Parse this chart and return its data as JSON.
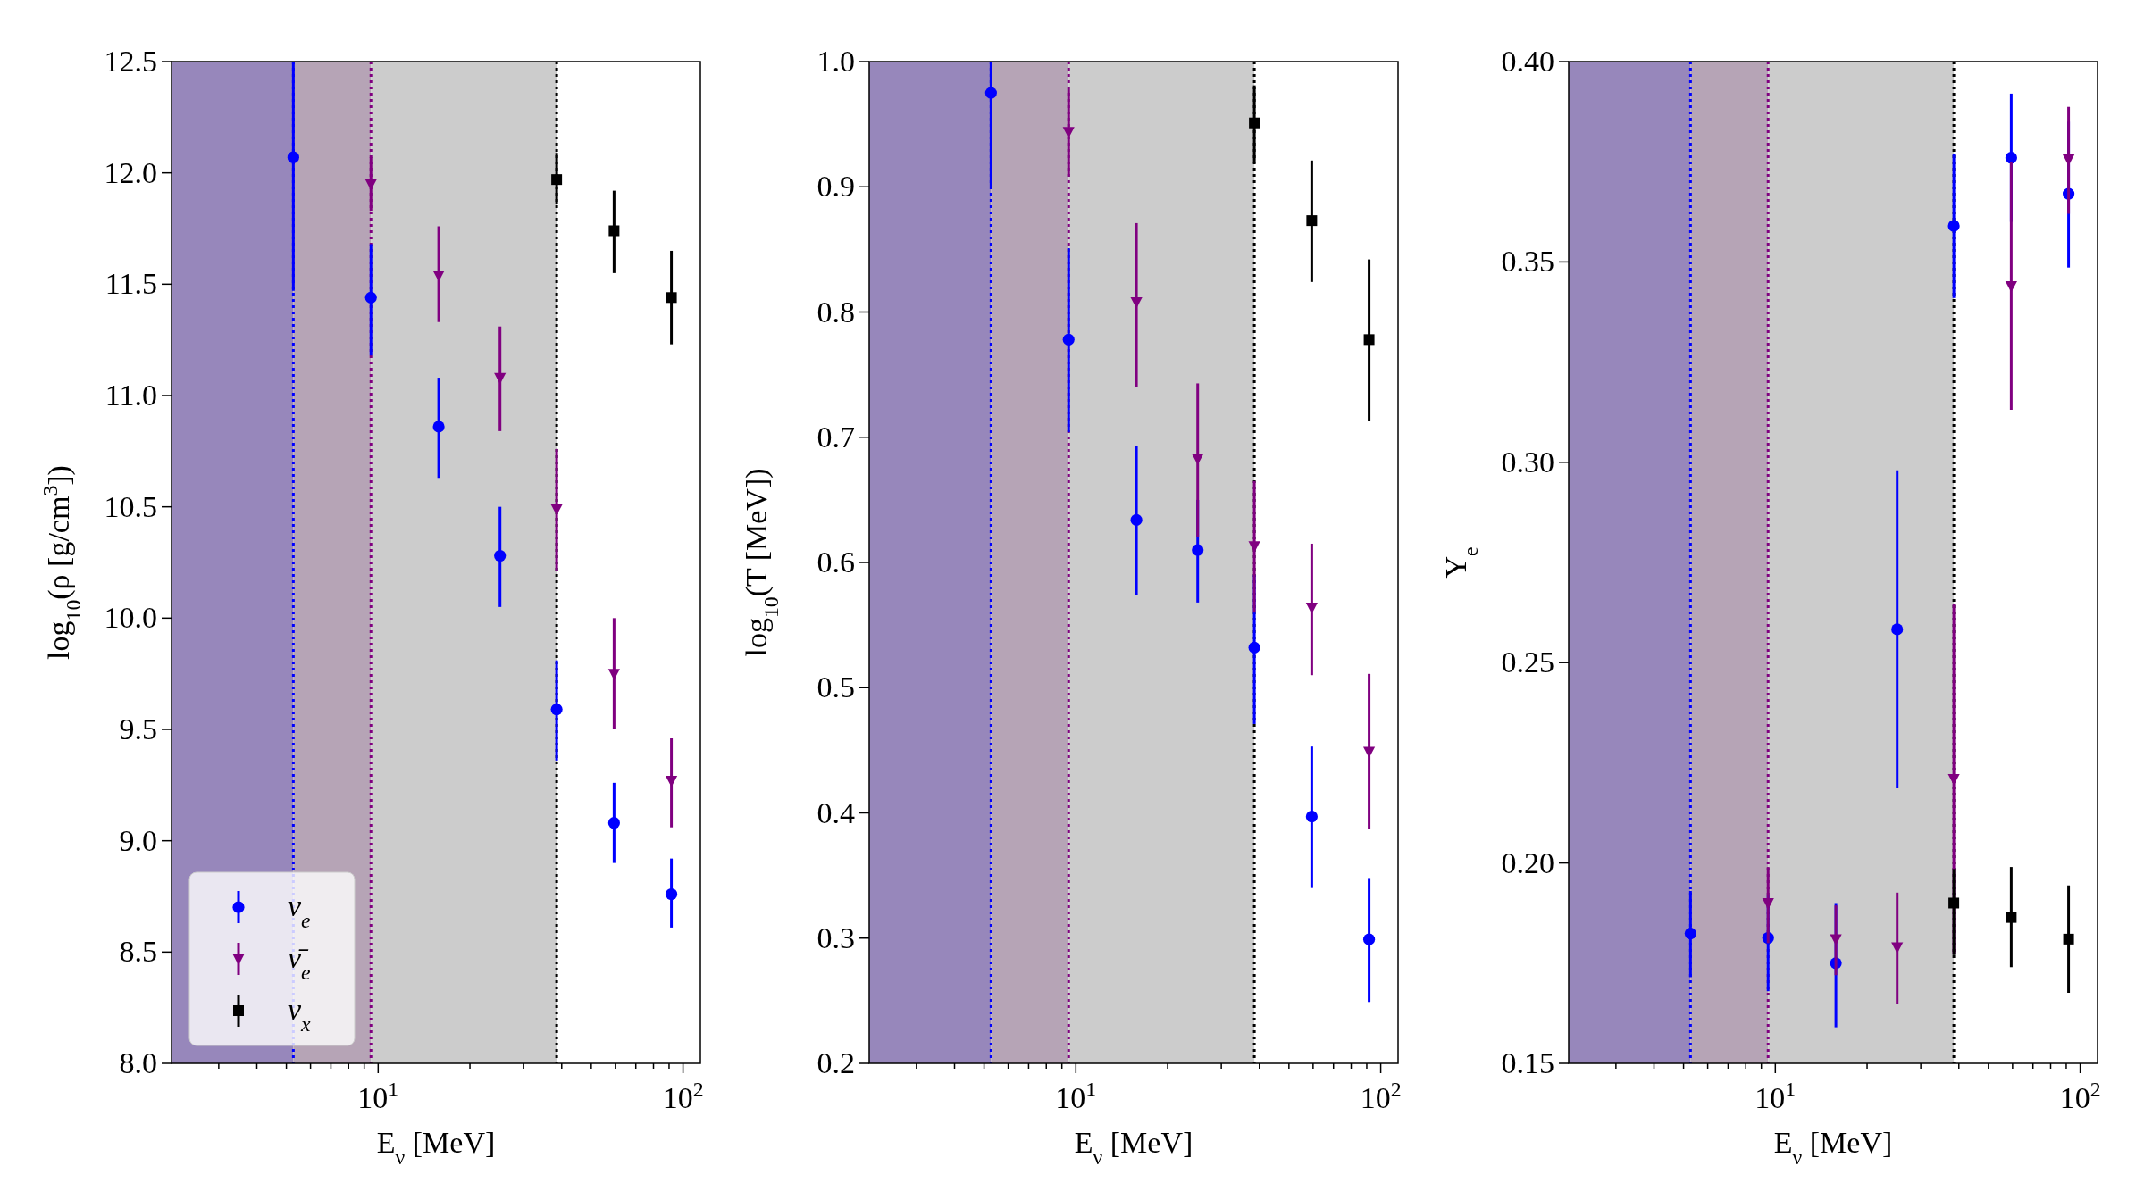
{
  "chart_data": [
    {
      "type": "scatter",
      "xlabel": "E$_{ν}$ [MeV]",
      "ylabel": "log$_{10}$(ρ [g/cm$^{3}$])",
      "log": "x",
      "xlim": [
        2.1,
        114
      ],
      "xticks": [
        {
          "value": 3,
          "label": null
        },
        {
          "value": 4,
          "label": null
        },
        {
          "value": 5,
          "label": null
        },
        {
          "value": 6,
          "label": null
        },
        {
          "value": 7,
          "label": null
        },
        {
          "value": 8,
          "label": null
        },
        {
          "value": 9,
          "label": null
        },
        {
          "value": 10,
          "label": "10$^{1}$"
        },
        {
          "value": 20,
          "label": null
        },
        {
          "value": 30,
          "label": null
        },
        {
          "value": 40,
          "label": null
        },
        {
          "value": 50,
          "label": null
        },
        {
          "value": 60,
          "label": null
        },
        {
          "value": 70,
          "label": null
        },
        {
          "value": 80,
          "label": null
        },
        {
          "value": 90,
          "label": null
        },
        {
          "value": 100,
          "label": "10$^{2}$"
        }
      ],
      "ylim": [
        8.0,
        12.5
      ],
      "yticks": [
        {
          "value": 8.0,
          "label": "8.0"
        },
        {
          "value": 8.5,
          "label": "8.5"
        },
        {
          "value": 9.0,
          "label": "9.0"
        },
        {
          "value": 9.5,
          "label": "9.5"
        },
        {
          "value": 10.0,
          "label": "10.0"
        },
        {
          "value": 10.5,
          "label": "10.5"
        },
        {
          "value": 11.0,
          "label": "11.0"
        },
        {
          "value": 11.5,
          "label": "11.5"
        },
        {
          "value": 12.0,
          "label": "12.0"
        },
        {
          "value": 12.5,
          "label": "12.5"
        }
      ],
      "legend": "bottom left",
      "bands": [
        {
          "axis": "x",
          "from": 2.1,
          "to": 5.27,
          "color": "#9787bb"
        },
        {
          "axis": "x",
          "from": 5.27,
          "to": 9.47,
          "color": "#b6a4b6"
        },
        {
          "axis": "x",
          "from": 9.47,
          "to": 38.5,
          "color": "#cccccc"
        }
      ],
      "ref_lines": [
        {
          "axis": "x",
          "value": 5.27,
          "color": "#0000ff",
          "line_style": "dotted"
        },
        {
          "axis": "x",
          "value": 9.47,
          "color": "#800080",
          "line_style": "dotted"
        },
        {
          "axis": "x",
          "value": 38.5,
          "color": "#000000",
          "line_style": "dotted"
        }
      ],
      "series": [
        {
          "name": "ν$_{e}$",
          "color": "#0000ff",
          "marker": "circle",
          "x": [
            5.27,
            9.47,
            15.8,
            25.1,
            38.5,
            59.4,
            91.6
          ],
          "values": [
            12.07,
            11.44,
            10.86,
            10.28,
            9.59,
            9.08,
            8.76
          ],
          "errors": [
            [
              11.47,
              12.5
            ],
            [
              11.18,
              11.68
            ],
            [
              10.63,
              11.08
            ],
            [
              10.05,
              10.5
            ],
            [
              9.36,
              9.81
            ],
            [
              8.9,
              9.26
            ],
            [
              8.61,
              8.92
            ]
          ]
        },
        {
          "name": "ν̄$_{e}$",
          "color": "#800080",
          "marker": "triangle",
          "x": [
            9.47,
            15.8,
            25.1,
            38.5,
            59.4,
            91.6
          ],
          "values": [
            11.95,
            11.54,
            11.08,
            10.49,
            9.75,
            9.27
          ],
          "errors": [
            [
              11.83,
              12.07
            ],
            [
              11.33,
              11.76
            ],
            [
              10.84,
              11.31
            ],
            [
              10.21,
              10.76
            ],
            [
              9.5,
              10.0
            ],
            [
              9.06,
              9.46
            ]
          ]
        },
        {
          "name": "ν$_{x}$",
          "color": "#000000",
          "marker": "square",
          "x": [
            38.5,
            59.4,
            91.6
          ],
          "values": [
            11.97,
            11.74,
            11.44
          ],
          "errors": [
            [
              11.86,
              12.09
            ],
            [
              11.55,
              11.92
            ],
            [
              11.23,
              11.65
            ]
          ]
        }
      ]
    },
    {
      "type": "scatter",
      "xlabel": "E$_{ν}$ [MeV]",
      "ylabel": "log$_{10}$(T [MeV])",
      "log": "x",
      "xlim": [
        2.1,
        114
      ],
      "xticks": [
        {
          "value": 3,
          "label": null
        },
        {
          "value": 4,
          "label": null
        },
        {
          "value": 5,
          "label": null
        },
        {
          "value": 6,
          "label": null
        },
        {
          "value": 7,
          "label": null
        },
        {
          "value": 8,
          "label": null
        },
        {
          "value": 9,
          "label": null
        },
        {
          "value": 10,
          "label": "10$^{1}$"
        },
        {
          "value": 20,
          "label": null
        },
        {
          "value": 30,
          "label": null
        },
        {
          "value": 40,
          "label": null
        },
        {
          "value": 50,
          "label": null
        },
        {
          "value": 60,
          "label": null
        },
        {
          "value": 70,
          "label": null
        },
        {
          "value": 80,
          "label": null
        },
        {
          "value": 90,
          "label": null
        },
        {
          "value": 100,
          "label": "10$^{2}$"
        }
      ],
      "ylim": [
        0.2,
        1.0
      ],
      "yticks": [
        0.2,
        0.3,
        0.4,
        0.5,
        0.6,
        0.7,
        0.8,
        0.9,
        {
          "value": 1.0,
          "label": "1.0"
        }
      ],
      "bands": [
        {
          "axis": "x",
          "from": 2.1,
          "to": 5.27,
          "color": "#9787bb"
        },
        {
          "axis": "x",
          "from": 5.27,
          "to": 9.47,
          "color": "#b6a4b6"
        },
        {
          "axis": "x",
          "from": 9.47,
          "to": 38.5,
          "color": "#cccccc"
        }
      ],
      "ref_lines": [
        {
          "axis": "x",
          "value": 5.27,
          "color": "#0000ff",
          "line_style": "dotted"
        },
        {
          "axis": "x",
          "value": 9.47,
          "color": "#800080",
          "line_style": "dotted"
        },
        {
          "axis": "x",
          "value": 38.5,
          "color": "#000000",
          "line_style": "dotted"
        }
      ],
      "series": [
        {
          "color": "#0000ff",
          "marker": "circle",
          "x": [
            5.27,
            9.47,
            15.8,
            25.1,
            38.5,
            59.4,
            91.6
          ],
          "values": [
            0.975,
            0.778,
            0.634,
            0.61,
            0.532,
            0.397,
            0.299
          ],
          "errors": [
            [
              0.9,
              1.0
            ],
            [
              0.704,
              0.851
            ],
            [
              0.574,
              0.693
            ],
            [
              0.568,
              0.65
            ],
            [
              0.471,
              0.59
            ],
            [
              0.34,
              0.453
            ],
            [
              0.249,
              0.348
            ]
          ]
        },
        {
          "color": "#800080",
          "marker": "triangle",
          "x": [
            9.47,
            15.8,
            25.1,
            38.5,
            59.4,
            91.6
          ],
          "values": [
            0.944,
            0.808,
            0.683,
            0.613,
            0.564,
            0.449
          ],
          "errors": [
            [
              0.908,
              0.978
            ],
            [
              0.74,
              0.871
            ],
            [
              0.62,
              0.743
            ],
            [
              0.56,
              0.665
            ],
            [
              0.51,
              0.615
            ],
            [
              0.387,
              0.511
            ]
          ]
        },
        {
          "color": "#000000",
          "marker": "square",
          "x": [
            38.5,
            59.4,
            91.6
          ],
          "values": [
            0.951,
            0.873,
            0.778
          ],
          "errors": [
            [
              0.919,
              0.981
            ],
            [
              0.824,
              0.921
            ],
            [
              0.713,
              0.842
            ]
          ]
        }
      ]
    },
    {
      "type": "scatter",
      "xlabel": "E$_{ν}$ [MeV]",
      "ylabel": "Y$_{e}$",
      "log": "x",
      "xlim": [
        2.1,
        114
      ],
      "xticks": [
        {
          "value": 3,
          "label": null
        },
        {
          "value": 4,
          "label": null
        },
        {
          "value": 5,
          "label": null
        },
        {
          "value": 6,
          "label": null
        },
        {
          "value": 7,
          "label": null
        },
        {
          "value": 8,
          "label": null
        },
        {
          "value": 9,
          "label": null
        },
        {
          "value": 10,
          "label": "10$^{1}$"
        },
        {
          "value": 20,
          "label": null
        },
        {
          "value": 30,
          "label": null
        },
        {
          "value": 40,
          "label": null
        },
        {
          "value": 50,
          "label": null
        },
        {
          "value": 60,
          "label": null
        },
        {
          "value": 70,
          "label": null
        },
        {
          "value": 80,
          "label": null
        },
        {
          "value": 90,
          "label": null
        },
        {
          "value": 100,
          "label": "10$^{2}$"
        }
      ],
      "ylim": [
        0.15,
        0.4
      ],
      "yticks": [
        0.15,
        {
          "value": 0.2,
          "label": "0.20"
        },
        0.25,
        {
          "value": 0.3,
          "label": "0.30"
        },
        0.35,
        {
          "value": 0.4,
          "label": "0.40"
        }
      ],
      "bands": [
        {
          "axis": "x",
          "from": 2.1,
          "to": 5.27,
          "color": "#9787bb"
        },
        {
          "axis": "x",
          "from": 5.27,
          "to": 9.47,
          "color": "#b6a4b6"
        },
        {
          "axis": "x",
          "from": 9.47,
          "to": 38.5,
          "color": "#cccccc"
        }
      ],
      "ref_lines": [
        {
          "axis": "x",
          "value": 5.27,
          "color": "#0000ff",
          "line_style": "dotted"
        },
        {
          "axis": "x",
          "value": 9.47,
          "color": "#800080",
          "line_style": "dotted"
        },
        {
          "axis": "x",
          "value": 38.5,
          "color": "#000000",
          "line_style": "dotted"
        }
      ],
      "series": [
        {
          "color": "#0000ff",
          "marker": "circle",
          "x": [
            5.27,
            9.47,
            15.8,
            25.1,
            38.5,
            59.4,
            91.6
          ],
          "values": [
            0.1824,
            0.1813,
            0.175,
            0.2583,
            0.359,
            0.376,
            0.367
          ],
          "errors": [
            [
              0.1715,
              0.193
            ],
            [
              0.168,
              0.192
            ],
            [
              0.159,
              0.19
            ],
            [
              0.2186,
              0.298
            ],
            [
              0.341,
              0.377
            ],
            [
              0.36,
              0.392
            ],
            [
              0.3486,
              0.385
            ]
          ]
        },
        {
          "color": "#800080",
          "marker": "triangle",
          "x": [
            9.47,
            15.8,
            25.1,
            38.5,
            59.4,
            91.6
          ],
          "values": [
            0.19,
            0.181,
            0.179,
            0.221,
            0.344,
            0.3756
          ],
          "errors": [
            [
              0.18,
              0.199
            ],
            [
              0.172,
              0.1894
            ],
            [
              0.1649,
              0.1926
            ],
            [
              0.1774,
              0.2646
            ],
            [
              0.3131,
              0.375
            ],
            [
              0.362,
              0.3887
            ]
          ]
        },
        {
          "color": "#000000",
          "marker": "square",
          "x": [
            38.5,
            59.4,
            91.6
          ],
          "values": [
            0.19,
            0.1864,
            0.181
          ],
          "errors": [
            [
              0.177,
              0.1985
            ],
            [
              0.174,
              0.199
            ],
            [
              0.1676,
              0.1944
            ]
          ]
        }
      ]
    }
  ]
}
